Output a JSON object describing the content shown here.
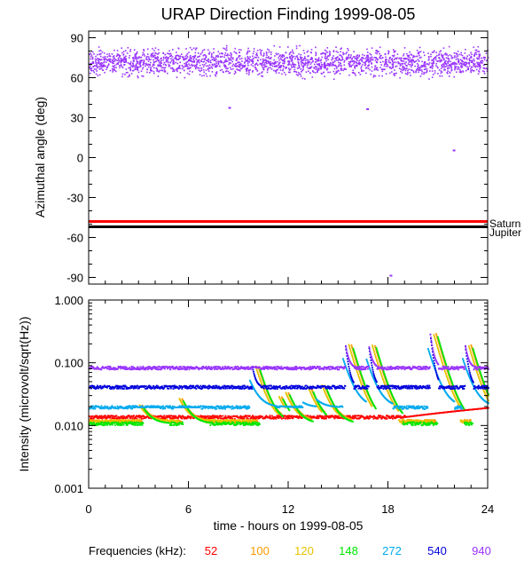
{
  "chart_data": [
    {
      "type": "scatter",
      "title": "URAP Direction Finding  1999-08-05",
      "ylabel": "Azimuthal angle (deg)",
      "ylim": [
        -95,
        95
      ],
      "yticks": [
        "90",
        "60",
        "30",
        "0",
        "-30",
        "-60",
        "-90"
      ],
      "xlim": [
        0,
        24
      ],
      "series": [
        {
          "name": "940",
          "color": "#9933ff",
          "band_center": 72,
          "band_spread": 6
        }
      ],
      "outliers": [
        {
          "x": 8.4,
          "y": 38
        },
        {
          "x": 16.7,
          "y": 37
        },
        {
          "x": 21.9,
          "y": 6
        },
        {
          "x": 18.1,
          "y": -88
        }
      ],
      "reference_lines": [
        {
          "name": "Saturn",
          "y": -48,
          "color": "#ff0000"
        },
        {
          "name": "Jupiter",
          "y": -52,
          "color": "#000000"
        }
      ]
    },
    {
      "type": "line",
      "ylabel": "Intensity (microvolt/sqrt(Hz))",
      "yscale": "log",
      "ylim": [
        0.001,
        1.0
      ],
      "yticks": [
        "1.000",
        "0.100",
        "0.010",
        "0.001"
      ],
      "xlabel": "time - hours on 1999-08-05",
      "xlim": [
        0,
        24
      ],
      "xticks": [
        "0",
        "6",
        "12",
        "18",
        "24"
      ],
      "series": [
        {
          "name": "52",
          "color": "#ff0000",
          "base": 0.014
        },
        {
          "name": "100",
          "color": "#ff9900",
          "base": 0.012
        },
        {
          "name": "120",
          "color": "#e6c200",
          "base": 0.012
        },
        {
          "name": "148",
          "color": "#00e600",
          "base": 0.011
        },
        {
          "name": "272",
          "color": "#00aaee",
          "base": 0.02
        },
        {
          "name": "540",
          "color": "#0000dd",
          "base": 0.042
        },
        {
          "name": "940",
          "color": "#9933ff",
          "base": 0.085
        }
      ],
      "bursts": [
        {
          "t": 2.8,
          "peak": 0.022
        },
        {
          "t": 5.2,
          "peak": 0.028
        },
        {
          "t": 9.8,
          "peak": 0.09
        },
        {
          "t": 11.2,
          "peak": 0.03
        },
        {
          "t": 11.6,
          "peak": 0.035
        },
        {
          "t": 13.0,
          "peak": 0.04
        },
        {
          "t": 13.8,
          "peak": 0.045
        },
        {
          "t": 15.4,
          "peak": 0.2
        },
        {
          "t": 16.8,
          "peak": 0.2
        },
        {
          "t": 20.5,
          "peak": 0.3
        },
        {
          "t": 22.6,
          "peak": 0.2
        }
      ]
    }
  ],
  "legend": {
    "label": "Frequencies (kHz):",
    "items": [
      {
        "text": "52",
        "color": "#ff0000"
      },
      {
        "text": "100",
        "color": "#ff9900"
      },
      {
        "text": "120",
        "color": "#e6c200"
      },
      {
        "text": "148",
        "color": "#00e600"
      },
      {
        "text": "272",
        "color": "#00aaee"
      },
      {
        "text": "540",
        "color": "#0000dd"
      },
      {
        "text": "940",
        "color": "#9933ff"
      }
    ]
  }
}
